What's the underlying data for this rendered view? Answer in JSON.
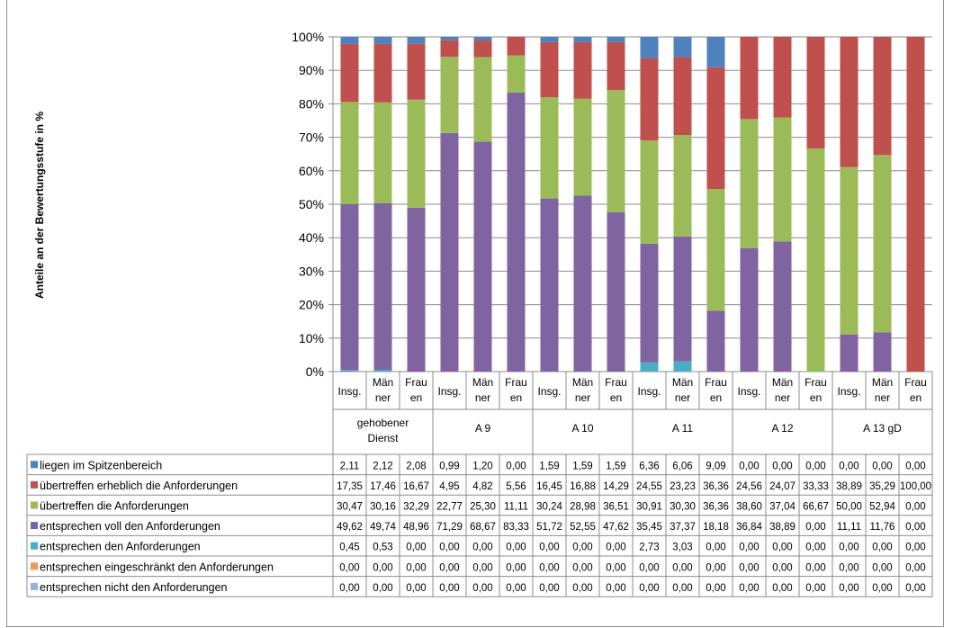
{
  "chart_data": {
    "type": "bar",
    "stacked": true,
    "percent": true,
    "ylabel": "Anteile an der Bewertungsstufe in %",
    "ylim": [
      0,
      100
    ],
    "yticks": [
      "0%",
      "10%",
      "20%",
      "30%",
      "40%",
      "50%",
      "60%",
      "70%",
      "80%",
      "90%",
      "100%"
    ],
    "grid": true,
    "legend": "table-left",
    "groups": [
      {
        "name": "gehobener Dienst",
        "categories": [
          "Insg.",
          "Männer",
          "Frauen"
        ]
      },
      {
        "name": "A 9",
        "categories": [
          "Insg.",
          "Männer",
          "Frauen"
        ]
      },
      {
        "name": "A 10",
        "categories": [
          "Insg.",
          "Männer",
          "Frauen"
        ]
      },
      {
        "name": "A 11",
        "categories": [
          "Insg.",
          "Männer",
          "Frauen"
        ]
      },
      {
        "name": "A 12",
        "categories": [
          "Insg.",
          "Männer",
          "Frauen"
        ]
      },
      {
        "name": "A 13 gD",
        "categories": [
          "Insg.",
          "Männer",
          "Frauen"
        ]
      }
    ],
    "category_lines": [
      [
        "Insg."
      ],
      [
        "Män",
        "ner"
      ],
      [
        "Frau",
        "en"
      ]
    ],
    "group_lines": [
      [
        "gehobener",
        "Dienst"
      ],
      [
        "A 9"
      ],
      [
        "A 10"
      ],
      [
        "A 11"
      ],
      [
        "A 12"
      ],
      [
        "A 13 gD"
      ]
    ],
    "series": [
      {
        "name": "liegen im Spitzenbereich",
        "color": "#4f81bd",
        "values": [
          2.11,
          2.12,
          2.08,
          0.99,
          1.2,
          0.0,
          1.59,
          1.59,
          1.59,
          6.36,
          6.06,
          9.09,
          0.0,
          0.0,
          0.0,
          0.0,
          0.0,
          0.0
        ],
        "labels": [
          "2,11",
          "2,12",
          "2,08",
          "0,99",
          "1,20",
          "0,00",
          "1,59",
          "1,59",
          "1,59",
          "6,36",
          "6,06",
          "9,09",
          "0,00",
          "0,00",
          "0,00",
          "0,00",
          "0,00",
          "0,00"
        ]
      },
      {
        "name": "übertreffen erheblich die Anforderungen",
        "color": "#c0504d",
        "values": [
          17.35,
          17.46,
          16.67,
          4.95,
          4.82,
          5.56,
          16.45,
          16.88,
          14.29,
          24.55,
          23.23,
          36.36,
          24.56,
          24.07,
          33.33,
          38.89,
          35.29,
          100.0
        ],
        "labels": [
          "17,35",
          "17,46",
          "16,67",
          "4,95",
          "4,82",
          "5,56",
          "16,45",
          "16,88",
          "14,29",
          "24,55",
          "23,23",
          "36,36",
          "24,56",
          "24,07",
          "33,33",
          "38,89",
          "35,29",
          "100,00"
        ]
      },
      {
        "name": "übertreffen die Anforderungen",
        "color": "#9bbb59",
        "values": [
          30.47,
          30.16,
          32.29,
          22.77,
          25.3,
          11.11,
          30.24,
          28.98,
          36.51,
          30.91,
          30.3,
          36.36,
          38.6,
          37.04,
          66.67,
          50.0,
          52.94,
          0.0
        ],
        "labels": [
          "30,47",
          "30,16",
          "32,29",
          "22,77",
          "25,30",
          "11,11",
          "30,24",
          "28,98",
          "36,51",
          "30,91",
          "30,30",
          "36,36",
          "38,60",
          "37,04",
          "66,67",
          "50,00",
          "52,94",
          "0,00"
        ]
      },
      {
        "name": "entsprechen voll den Anforderungen",
        "color": "#8064a2",
        "values": [
          49.62,
          49.74,
          48.96,
          71.29,
          68.67,
          83.33,
          51.72,
          52.55,
          47.62,
          35.45,
          37.37,
          18.18,
          36.84,
          38.89,
          0.0,
          11.11,
          11.76,
          0.0
        ],
        "labels": [
          "49,62",
          "49,74",
          "48,96",
          "71,29",
          "68,67",
          "83,33",
          "51,72",
          "52,55",
          "47,62",
          "35,45",
          "37,37",
          "18,18",
          "36,84",
          "38,89",
          "0,00",
          "11,11",
          "11,76",
          "0,00"
        ]
      },
      {
        "name": "entsprechen den Anforderungen",
        "color": "#4bacc6",
        "values": [
          0.45,
          0.53,
          0.0,
          0.0,
          0.0,
          0.0,
          0.0,
          0.0,
          0.0,
          2.73,
          3.03,
          0.0,
          0.0,
          0.0,
          0.0,
          0.0,
          0.0,
          0.0
        ],
        "labels": [
          "0,45",
          "0,53",
          "0,00",
          "0,00",
          "0,00",
          "0,00",
          "0,00",
          "0,00",
          "0,00",
          "2,73",
          "3,03",
          "0,00",
          "0,00",
          "0,00",
          "0,00",
          "0,00",
          "0,00",
          "0,00"
        ]
      },
      {
        "name": "entsprechen eingeschränkt den Anforderungen",
        "color": "#f79646",
        "values": [
          0,
          0,
          0,
          0,
          0,
          0,
          0,
          0,
          0,
          0,
          0,
          0,
          0,
          0,
          0,
          0,
          0,
          0
        ],
        "labels": [
          "0,00",
          "0,00",
          "0,00",
          "0,00",
          "0,00",
          "0,00",
          "0,00",
          "0,00",
          "0,00",
          "0,00",
          "0,00",
          "0,00",
          "0,00",
          "0,00",
          "0,00",
          "0,00",
          "0,00",
          "0,00"
        ]
      },
      {
        "name": "entsprechen nicht den Anforderungen",
        "color": "#95b3d7",
        "values": [
          0,
          0,
          0,
          0,
          0,
          0,
          0,
          0,
          0,
          0,
          0,
          0,
          0,
          0,
          0,
          0,
          0,
          0
        ],
        "labels": [
          "0,00",
          "0,00",
          "0,00",
          "0,00",
          "0,00",
          "0,00",
          "0,00",
          "0,00",
          "0,00",
          "0,00",
          "0,00",
          "0,00",
          "0,00",
          "0,00",
          "0,00",
          "0,00",
          "0,00",
          "0,00"
        ]
      }
    ],
    "stack_order_bottom_to_top": [
      6,
      5,
      4,
      3,
      2,
      1,
      0
    ]
  }
}
